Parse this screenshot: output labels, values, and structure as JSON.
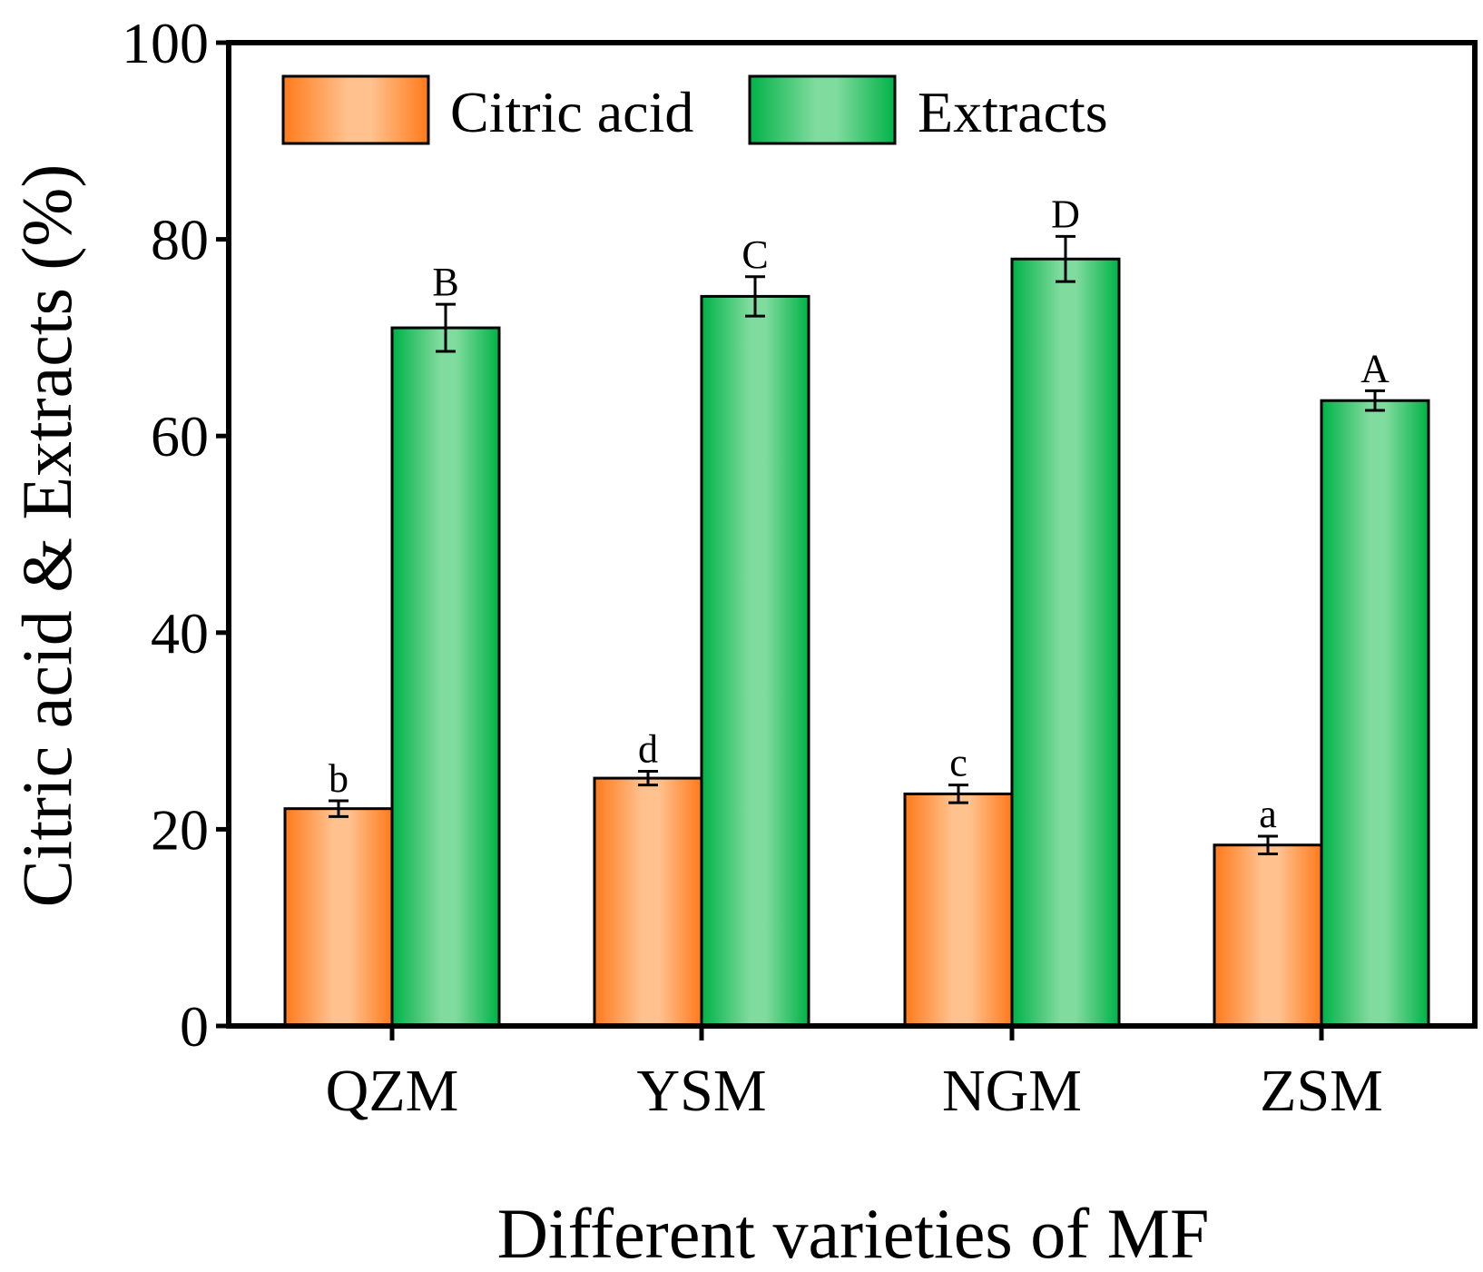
{
  "chart_data": {
    "type": "bar",
    "xlabel": "Different varieties of MF",
    "ylabel": "Citric acid & Extracts (%)",
    "ylim": [
      0,
      100
    ],
    "yticks": [
      0,
      20,
      40,
      60,
      80,
      100
    ],
    "ytick_labels": [
      "0",
      "20",
      "40",
      "60",
      "80",
      "100"
    ],
    "categories": [
      "QZM",
      "YSM",
      "NGM",
      "ZSM"
    ],
    "legend_position": "top-left",
    "series": [
      {
        "name": "Citric acid",
        "color_dark": "#ff7a1a",
        "color_light": "#ffc28f",
        "values": [
          22.1,
          25.2,
          23.6,
          18.4
        ],
        "errors": [
          0.8,
          0.7,
          0.9,
          0.9
        ],
        "significance": [
          "b",
          "d",
          "c",
          "a"
        ]
      },
      {
        "name": "Extracts",
        "color_dark": "#00b247",
        "color_light": "#7fdb9e",
        "values": [
          71.0,
          74.2,
          78.0,
          63.6
        ],
        "errors": [
          2.4,
          2.0,
          2.3,
          1.0
        ],
        "significance": [
          "B",
          "C",
          "D",
          "A"
        ]
      }
    ]
  }
}
